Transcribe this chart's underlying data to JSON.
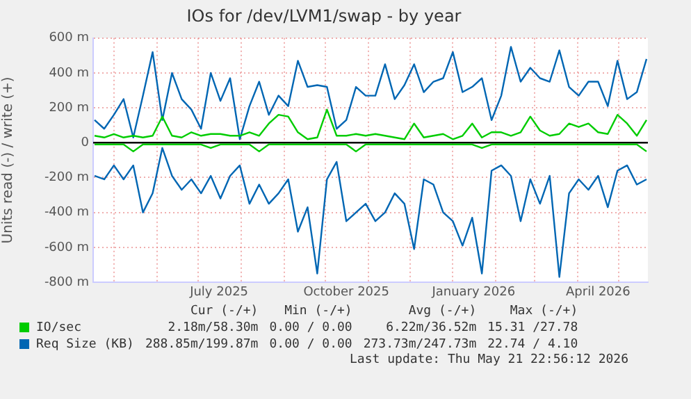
{
  "chart_data": {
    "type": "line",
    "title": "IOs for /dev/LVM1/swap - by year",
    "ylabel": "Units read (-) / write (+)",
    "x": [
      "2025-04-17",
      "2025-04-24",
      "2025-05-01",
      "2025-05-08",
      "2025-05-15",
      "2025-05-22",
      "2025-05-29",
      "2025-06-05",
      "2025-06-12",
      "2025-06-19",
      "2025-06-26",
      "2025-07-03",
      "2025-07-10",
      "2025-07-17",
      "2025-07-24",
      "2025-07-31",
      "2025-08-07",
      "2025-08-14",
      "2025-08-21",
      "2025-08-28",
      "2025-09-04",
      "2025-09-11",
      "2025-09-18",
      "2025-09-25",
      "2025-10-02",
      "2025-10-09",
      "2025-10-16",
      "2025-10-23",
      "2025-10-30",
      "2025-11-06",
      "2025-11-13",
      "2025-11-20",
      "2025-11-27",
      "2025-12-04",
      "2025-12-11",
      "2025-12-18",
      "2025-12-25",
      "2026-01-01",
      "2026-01-08",
      "2026-01-15",
      "2026-01-22",
      "2026-01-29",
      "2026-02-05",
      "2026-02-12",
      "2026-02-19",
      "2026-02-26",
      "2026-03-05",
      "2026-03-12",
      "2026-03-19",
      "2026-03-26",
      "2026-04-02",
      "2026-04-09",
      "2026-04-16",
      "2026-04-23",
      "2026-04-30",
      "2026-05-07",
      "2026-05-14",
      "2026-05-21"
    ],
    "series": [
      {
        "name": "IO/sec",
        "color": "#00cc00",
        "values": [
          40,
          30,
          50,
          30,
          40,
          30,
          40,
          150,
          40,
          30,
          60,
          40,
          50,
          50,
          40,
          40,
          60,
          40,
          110,
          160,
          150,
          60,
          20,
          30,
          190,
          40,
          40,
          50,
          40,
          50,
          40,
          30,
          20,
          110,
          30,
          40,
          50,
          20,
          40,
          110,
          30,
          60,
          60,
          40,
          60,
          150,
          70,
          40,
          50,
          110,
          90,
          110,
          60,
          50,
          160,
          110,
          40,
          130
        ]
      },
      {
        "color": "#00cc00",
        "values": [
          -10,
          -10,
          -10,
          -10,
          -50,
          -10,
          -10,
          -10,
          -10,
          -10,
          -10,
          -10,
          -30,
          -10,
          -10,
          -10,
          -10,
          -50,
          -10,
          -10,
          -10,
          -10,
          -10,
          -10,
          -10,
          -10,
          -10,
          -50,
          -10,
          -10,
          -10,
          -10,
          -10,
          -10,
          -10,
          -10,
          -10,
          -10,
          -10,
          -10,
          -30,
          -10,
          -10,
          -10,
          -10,
          -10,
          -10,
          -10,
          -10,
          -10,
          -10,
          -10,
          -10,
          -10,
          -10,
          -10,
          -10,
          -50
        ]
      },
      {
        "name": "Req Size (KB)",
        "color": "#0066b3",
        "values": [
          130,
          80,
          160,
          250,
          30,
          270,
          520,
          130,
          400,
          250,
          190,
          80,
          400,
          240,
          370,
          20,
          210,
          350,
          160,
          270,
          210,
          470,
          320,
          330,
          320,
          80,
          130,
          320,
          270,
          270,
          450,
          250,
          330,
          450,
          290,
          350,
          370,
          520,
          290,
          320,
          370,
          130,
          270,
          550,
          350,
          430,
          370,
          350,
          530,
          320,
          270,
          350,
          350,
          210,
          470,
          250,
          290,
          480
        ]
      },
      {
        "color": "#0066b3",
        "values": [
          -190,
          -210,
          -130,
          -210,
          -130,
          -400,
          -290,
          -30,
          -190,
          -270,
          -210,
          -290,
          -190,
          -320,
          -190,
          -130,
          -350,
          -240,
          -350,
          -290,
          -210,
          -510,
          -370,
          -750,
          -210,
          -110,
          -450,
          -400,
          -350,
          -450,
          -400,
          -290,
          -350,
          -610,
          -210,
          -240,
          -400,
          -450,
          -590,
          -430,
          -750,
          -160,
          -130,
          -190,
          -450,
          -210,
          -350,
          -190,
          -770,
          -290,
          -210,
          -270,
          -190,
          -370,
          -160,
          -130,
          -240,
          -210
        ]
      }
    ],
    "xlim": [
      "2025-04-16",
      "2026-05-22"
    ],
    "xticks": [
      {
        "value": "2025-05-01",
        "label": null
      },
      {
        "value": "2025-06-01",
        "label": null
      },
      {
        "value": "2025-07-01",
        "label": null
      },
      {
        "value": "2025-07-16",
        "label": "July 2025"
      },
      {
        "value": "2025-08-01",
        "label": null
      },
      {
        "value": "2025-09-01",
        "label": null
      },
      {
        "value": "2025-10-01",
        "label": null
      },
      {
        "value": "2025-10-16",
        "label": "October 2025"
      },
      {
        "value": "2025-11-01",
        "label": null
      },
      {
        "value": "2025-12-01",
        "label": null
      },
      {
        "value": "2026-01-01",
        "label": null
      },
      {
        "value": "2026-01-16",
        "label": "January 2026"
      },
      {
        "value": "2026-02-01",
        "label": null
      },
      {
        "value": "2026-03-01",
        "label": null
      },
      {
        "value": "2026-04-01",
        "label": null
      },
      {
        "value": "2026-04-16",
        "label": "April 2026"
      },
      {
        "value": "2026-05-01",
        "label": null
      }
    ],
    "ylim": [
      -800,
      600
    ],
    "yticks": [
      {
        "value": -800,
        "label": "-800 m"
      },
      {
        "value": -600,
        "label": "-600 m"
      },
      {
        "value": -400,
        "label": "-400 m"
      },
      {
        "value": -200,
        "label": "-200 m"
      },
      0,
      {
        "value": 200,
        "label": "200 m"
      },
      {
        "value": 400,
        "label": "400 m"
      },
      {
        "value": 600,
        "label": "600 m"
      }
    ],
    "ref_lines": [
      {
        "axis": "y",
        "value": 0,
        "color": "#000000"
      }
    ],
    "grid": true,
    "legend": "bottom",
    "marker": "none",
    "line_style": "solid",
    "annotations": [
      "Cur (-/+)",
      "Min (-/+)",
      "Avg (-/+)",
      "Max (-/+)",
      "2.18m/58.30m",
      "0.00 / 0.00",
      "6.22m/36.52m",
      "15.31 /27.78",
      "288.85m/199.87m",
      "0.00 / 0.00",
      "273.73m/247.73m",
      "22.74 / 4.10",
      "Last update: Thu May 21 22:56:12 2026"
    ]
  }
}
